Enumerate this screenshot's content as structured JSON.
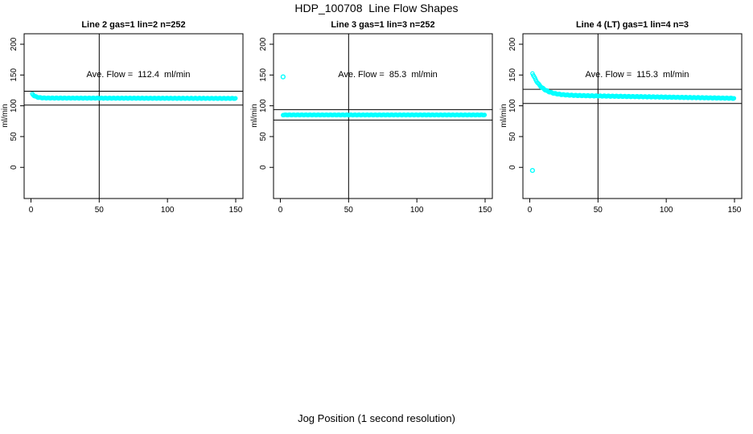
{
  "page": {
    "title": "HDP_100708  Line Flow Shapes",
    "xlabel": "Jog Position (1 second resolution)"
  },
  "colors": {
    "marker": "#00ffff",
    "axis": "#000000",
    "background": "#ffffff"
  },
  "chart_data": [
    {
      "type": "scatter",
      "title": "Line 2 gas=1 lin=2 n=252",
      "annotation": "Ave. Flow =  112.4  ml/min",
      "ave_flow_ml_min": 112.4,
      "n_points": 252,
      "ylabel": "ml/min",
      "xticks": [
        0,
        50,
        100,
        150
      ],
      "yticks": [
        0,
        50,
        100,
        150,
        200
      ],
      "xlim": [
        -5,
        155.3
      ],
      "ylim": [
        -50.6,
        217
      ],
      "grid": false,
      "vline_x": 50,
      "hlines": [
        123.6,
        101.2
      ],
      "series": {
        "name": "flow",
        "x_from": 1,
        "x_to": 150,
        "step": 0.6,
        "start": 119,
        "plateau": 112.6,
        "tau": 2.5,
        "slope": -0.004,
        "jitter": 0.5
      },
      "outliers": []
    },
    {
      "type": "scatter",
      "title": "Line 3 gas=1 lin=3 n=252",
      "annotation": "Ave. Flow =  85.3  ml/min",
      "ave_flow_ml_min": 85.3,
      "n_points": 252,
      "ylabel": "ml/min",
      "xticks": [
        0,
        50,
        100,
        150
      ],
      "yticks": [
        0,
        50,
        100,
        150,
        200
      ],
      "xlim": [
        -5,
        155.3
      ],
      "ylim": [
        -50.6,
        217
      ],
      "grid": false,
      "vline_x": 50,
      "hlines": [
        93.8,
        76.8
      ],
      "series": {
        "name": "flow",
        "x_from": 2,
        "x_to": 150,
        "step": 0.6,
        "start": 85.2,
        "plateau": 85.2,
        "tau": 1,
        "slope": 0,
        "jitter": 0.4
      },
      "outliers": [
        [
          2,
          147
        ]
      ]
    },
    {
      "type": "scatter",
      "title": "Line 4 (LT) gas=1 lin=4 n=3",
      "annotation": "Ave. Flow =  115.3  ml/min",
      "ave_flow_ml_min": 115.3,
      "n_points": 3,
      "ylabel": "ml/min",
      "xticks": [
        0,
        50,
        100,
        150
      ],
      "yticks": [
        0,
        50,
        100,
        150,
        200
      ],
      "xlim": [
        -5,
        155.3
      ],
      "ylim": [
        -50.6,
        217
      ],
      "grid": false,
      "vline_x": 50,
      "hlines": [
        126.8,
        103.8
      ],
      "series": {
        "name": "flow",
        "x_from": 2,
        "x_to": 150,
        "step": 0.6,
        "start": 153,
        "plateau": 117.8,
        "tau": 6.5,
        "slope": -0.038,
        "jitter": 0.6
      },
      "outliers": [
        [
          2,
          -5
        ]
      ]
    }
  ]
}
